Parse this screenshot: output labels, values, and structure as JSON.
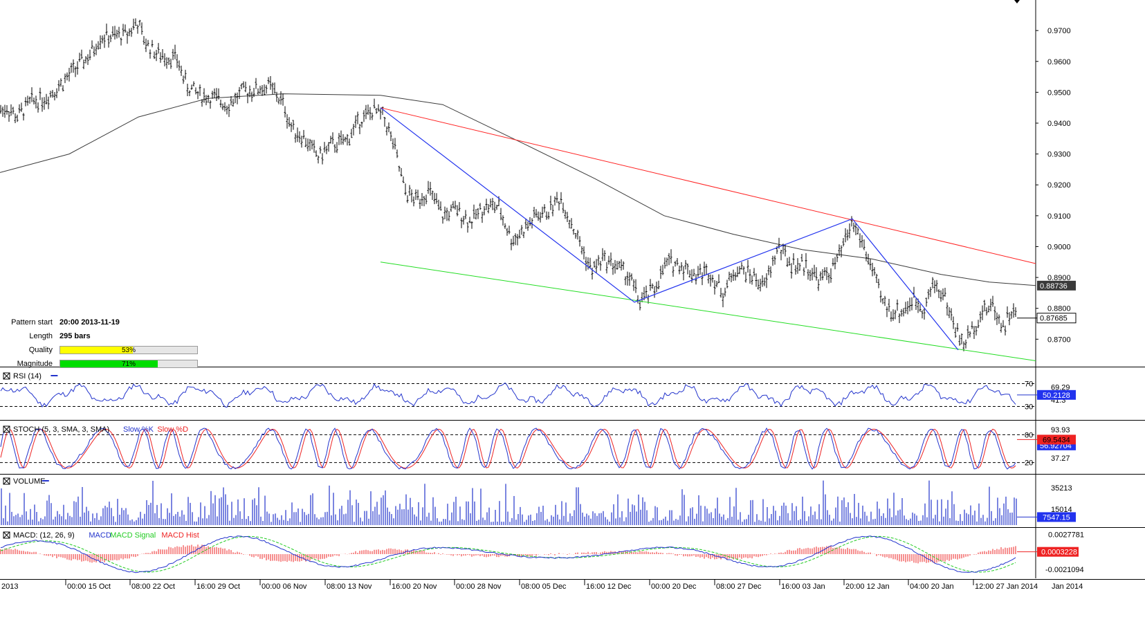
{
  "pattern": {
    "rows": [
      {
        "label": "Pattern start",
        "value": "20:00 2013-11-19"
      },
      {
        "label": "Length",
        "value": "295 bars"
      }
    ],
    "quality": {
      "label": "Quality",
      "value": 53,
      "text": "53%",
      "color": "#ffff00"
    },
    "magnitude": {
      "label": "Magnitude",
      "value": 71,
      "text": "71%",
      "color": "#00dd00"
    }
  },
  "x_axis": {
    "labels": [
      "2013",
      "00:00 15 Oct",
      "08:00 22 Oct",
      "16:00 29 Oct",
      "00:00 06 Nov",
      "08:00 13 Nov",
      "16:00 20 Nov",
      "00:00 28 Nov",
      "08:00 05 Dec",
      "16:00 12 Dec",
      "00:00 20 Dec",
      "08:00 27 Dec",
      "16:00 03 Jan",
      "20:00 12 Jan",
      "04:00 20 Jan",
      "12:00 27 Jan 2014",
      "Jan 2014"
    ]
  },
  "colors": {
    "price": "#000000",
    "moving_average": "#3a3a3a",
    "upper_line": "#ff2222",
    "lower_line": "#22dd22",
    "zigzag": "#2233ee",
    "indicator": "#2233cc",
    "stoch_slow_d": "#ee2222",
    "macd_signal": "#22cc22",
    "macd_hist": "#ee2222"
  },
  "chart_data": [
    {
      "type": "candlestick",
      "symbol_current_price": "0.87685",
      "ma_value_label": "0.88736",
      "y_ticks": [
        "0.9700",
        "0.9600",
        "0.9500",
        "0.9400",
        "0.9300",
        "0.9200",
        "0.9100",
        "0.9000",
        "0.8900",
        "0.8800",
        "0.8700"
      ],
      "ylim": [
        0.862,
        0.979
      ],
      "price_path": [
        [
          0,
          0.944
        ],
        [
          10,
          0.945
        ],
        [
          25,
          0.942
        ],
        [
          45,
          0.947
        ],
        [
          65,
          0.948
        ],
        [
          90,
          0.953
        ],
        [
          110,
          0.958
        ],
        [
          130,
          0.962
        ],
        [
          145,
          0.968
        ],
        [
          165,
          0.968
        ],
        [
          185,
          0.969
        ],
        [
          198,
          0.973
        ],
        [
          210,
          0.966
        ],
        [
          230,
          0.962
        ],
        [
          255,
          0.961
        ],
        [
          270,
          0.952
        ],
        [
          290,
          0.949
        ],
        [
          310,
          0.948
        ],
        [
          330,
          0.946
        ],
        [
          350,
          0.95
        ],
        [
          370,
          0.951
        ],
        [
          390,
          0.952
        ],
        [
          410,
          0.946
        ],
        [
          420,
          0.939
        ],
        [
          440,
          0.935
        ],
        [
          460,
          0.929
        ],
        [
          480,
          0.933
        ],
        [
          500,
          0.934
        ],
        [
          520,
          0.941
        ],
        [
          540,
          0.944
        ],
        [
          555,
          0.942
        ],
        [
          570,
          0.932
        ],
        [
          585,
          0.918
        ],
        [
          600,
          0.915
        ],
        [
          620,
          0.918
        ],
        [
          640,
          0.91
        ],
        [
          660,
          0.912
        ],
        [
          680,
          0.908
        ],
        [
          700,
          0.913
        ],
        [
          720,
          0.913
        ],
        [
          740,
          0.902
        ],
        [
          760,
          0.906
        ],
        [
          775,
          0.91
        ],
        [
          790,
          0.911
        ],
        [
          810,
          0.916
        ],
        [
          825,
          0.908
        ],
        [
          840,
          0.9
        ],
        [
          855,
          0.892
        ],
        [
          870,
          0.896
        ],
        [
          890,
          0.894
        ],
        [
          910,
          0.89
        ],
        [
          925,
          0.882
        ],
        [
          945,
          0.886
        ],
        [
          965,
          0.895
        ],
        [
          985,
          0.894
        ],
        [
          1005,
          0.891
        ],
        [
          1025,
          0.892
        ],
        [
          1045,
          0.885
        ],
        [
          1065,
          0.893
        ],
        [
          1085,
          0.891
        ],
        [
          1105,
          0.887
        ],
        [
          1125,
          0.9
        ],
        [
          1145,
          0.894
        ],
        [
          1165,
          0.894
        ],
        [
          1185,
          0.889
        ],
        [
          1205,
          0.893
        ],
        [
          1215,
          0.898
        ],
        [
          1232,
          0.908
        ],
        [
          1245,
          0.902
        ],
        [
          1260,
          0.893
        ],
        [
          1275,
          0.882
        ],
        [
          1290,
          0.879
        ],
        [
          1305,
          0.879
        ],
        [
          1320,
          0.883
        ],
        [
          1335,
          0.88
        ],
        [
          1350,
          0.888
        ],
        [
          1365,
          0.884
        ],
        [
          1380,
          0.874
        ],
        [
          1392,
          0.868
        ],
        [
          1405,
          0.873
        ],
        [
          1420,
          0.879
        ],
        [
          1435,
          0.881
        ],
        [
          1450,
          0.874
        ],
        [
          1462,
          0.879
        ],
        [
          1470,
          0.877
        ]
      ],
      "moving_average": [
        [
          0,
          0.924
        ],
        [
          100,
          0.93
        ],
        [
          200,
          0.942
        ],
        [
          300,
          0.948
        ],
        [
          410,
          0.9495
        ],
        [
          550,
          0.949
        ],
        [
          640,
          0.946
        ],
        [
          760,
          0.933
        ],
        [
          860,
          0.922
        ],
        [
          960,
          0.91
        ],
        [
          1060,
          0.904
        ],
        [
          1160,
          0.899
        ],
        [
          1260,
          0.896
        ],
        [
          1360,
          0.891
        ],
        [
          1430,
          0.8885
        ],
        [
          1497,
          0.8874
        ]
      ],
      "upper_line": [
        [
          550,
          0.945
        ],
        [
          1497,
          0.8945
        ]
      ],
      "lower_line": [
        [
          550,
          0.895
        ],
        [
          1497,
          0.863
        ]
      ],
      "zigzag": [
        [
          550,
          0.945
        ],
        [
          917,
          0.882
        ],
        [
          1232,
          0.909
        ],
        [
          1385,
          0.8665
        ]
      ]
    },
    {
      "type": "line",
      "name": "RSI (14)",
      "levels": [
        70,
        30
      ],
      "level_labels": [
        "70",
        "30"
      ],
      "right_labels": [
        "69.29",
        "41.3"
      ],
      "current_label": "50.2128",
      "ylim": [
        10,
        90
      ]
    },
    {
      "type": "line",
      "name": "STOCH (5, 3, SMA, 3, SMA)",
      "legend_series": [
        {
          "name": "Slow %K",
          "color": "#2233cc"
        },
        {
          "name": "Slow %D",
          "color": "#ee2222"
        }
      ],
      "levels": [
        80,
        20
      ],
      "level_labels": [
        "80",
        "20"
      ],
      "right_labels": [
        "93.93",
        "56.92704",
        "37.27"
      ],
      "current_label": "69.5434",
      "ylim": [
        0,
        100
      ]
    },
    {
      "type": "bar",
      "name": "VOLUME",
      "right_labels": [
        "35213",
        "15014"
      ],
      "current_label": "7547.15",
      "ylim": [
        0,
        45000
      ]
    },
    {
      "type": "line",
      "name": "MACD: (12, 26, 9)",
      "legend_series": [
        {
          "name": "MACD",
          "color": "#2233cc"
        },
        {
          "name": "MACD Signal",
          "color": "#22cc22"
        },
        {
          "name": "MACD Hist",
          "color": "#ee2222"
        }
      ],
      "right_labels": [
        "0.0027781",
        "-0.0021094"
      ],
      "current_label": "0.0003228",
      "ylim": [
        -0.0032,
        0.0032
      ]
    }
  ]
}
